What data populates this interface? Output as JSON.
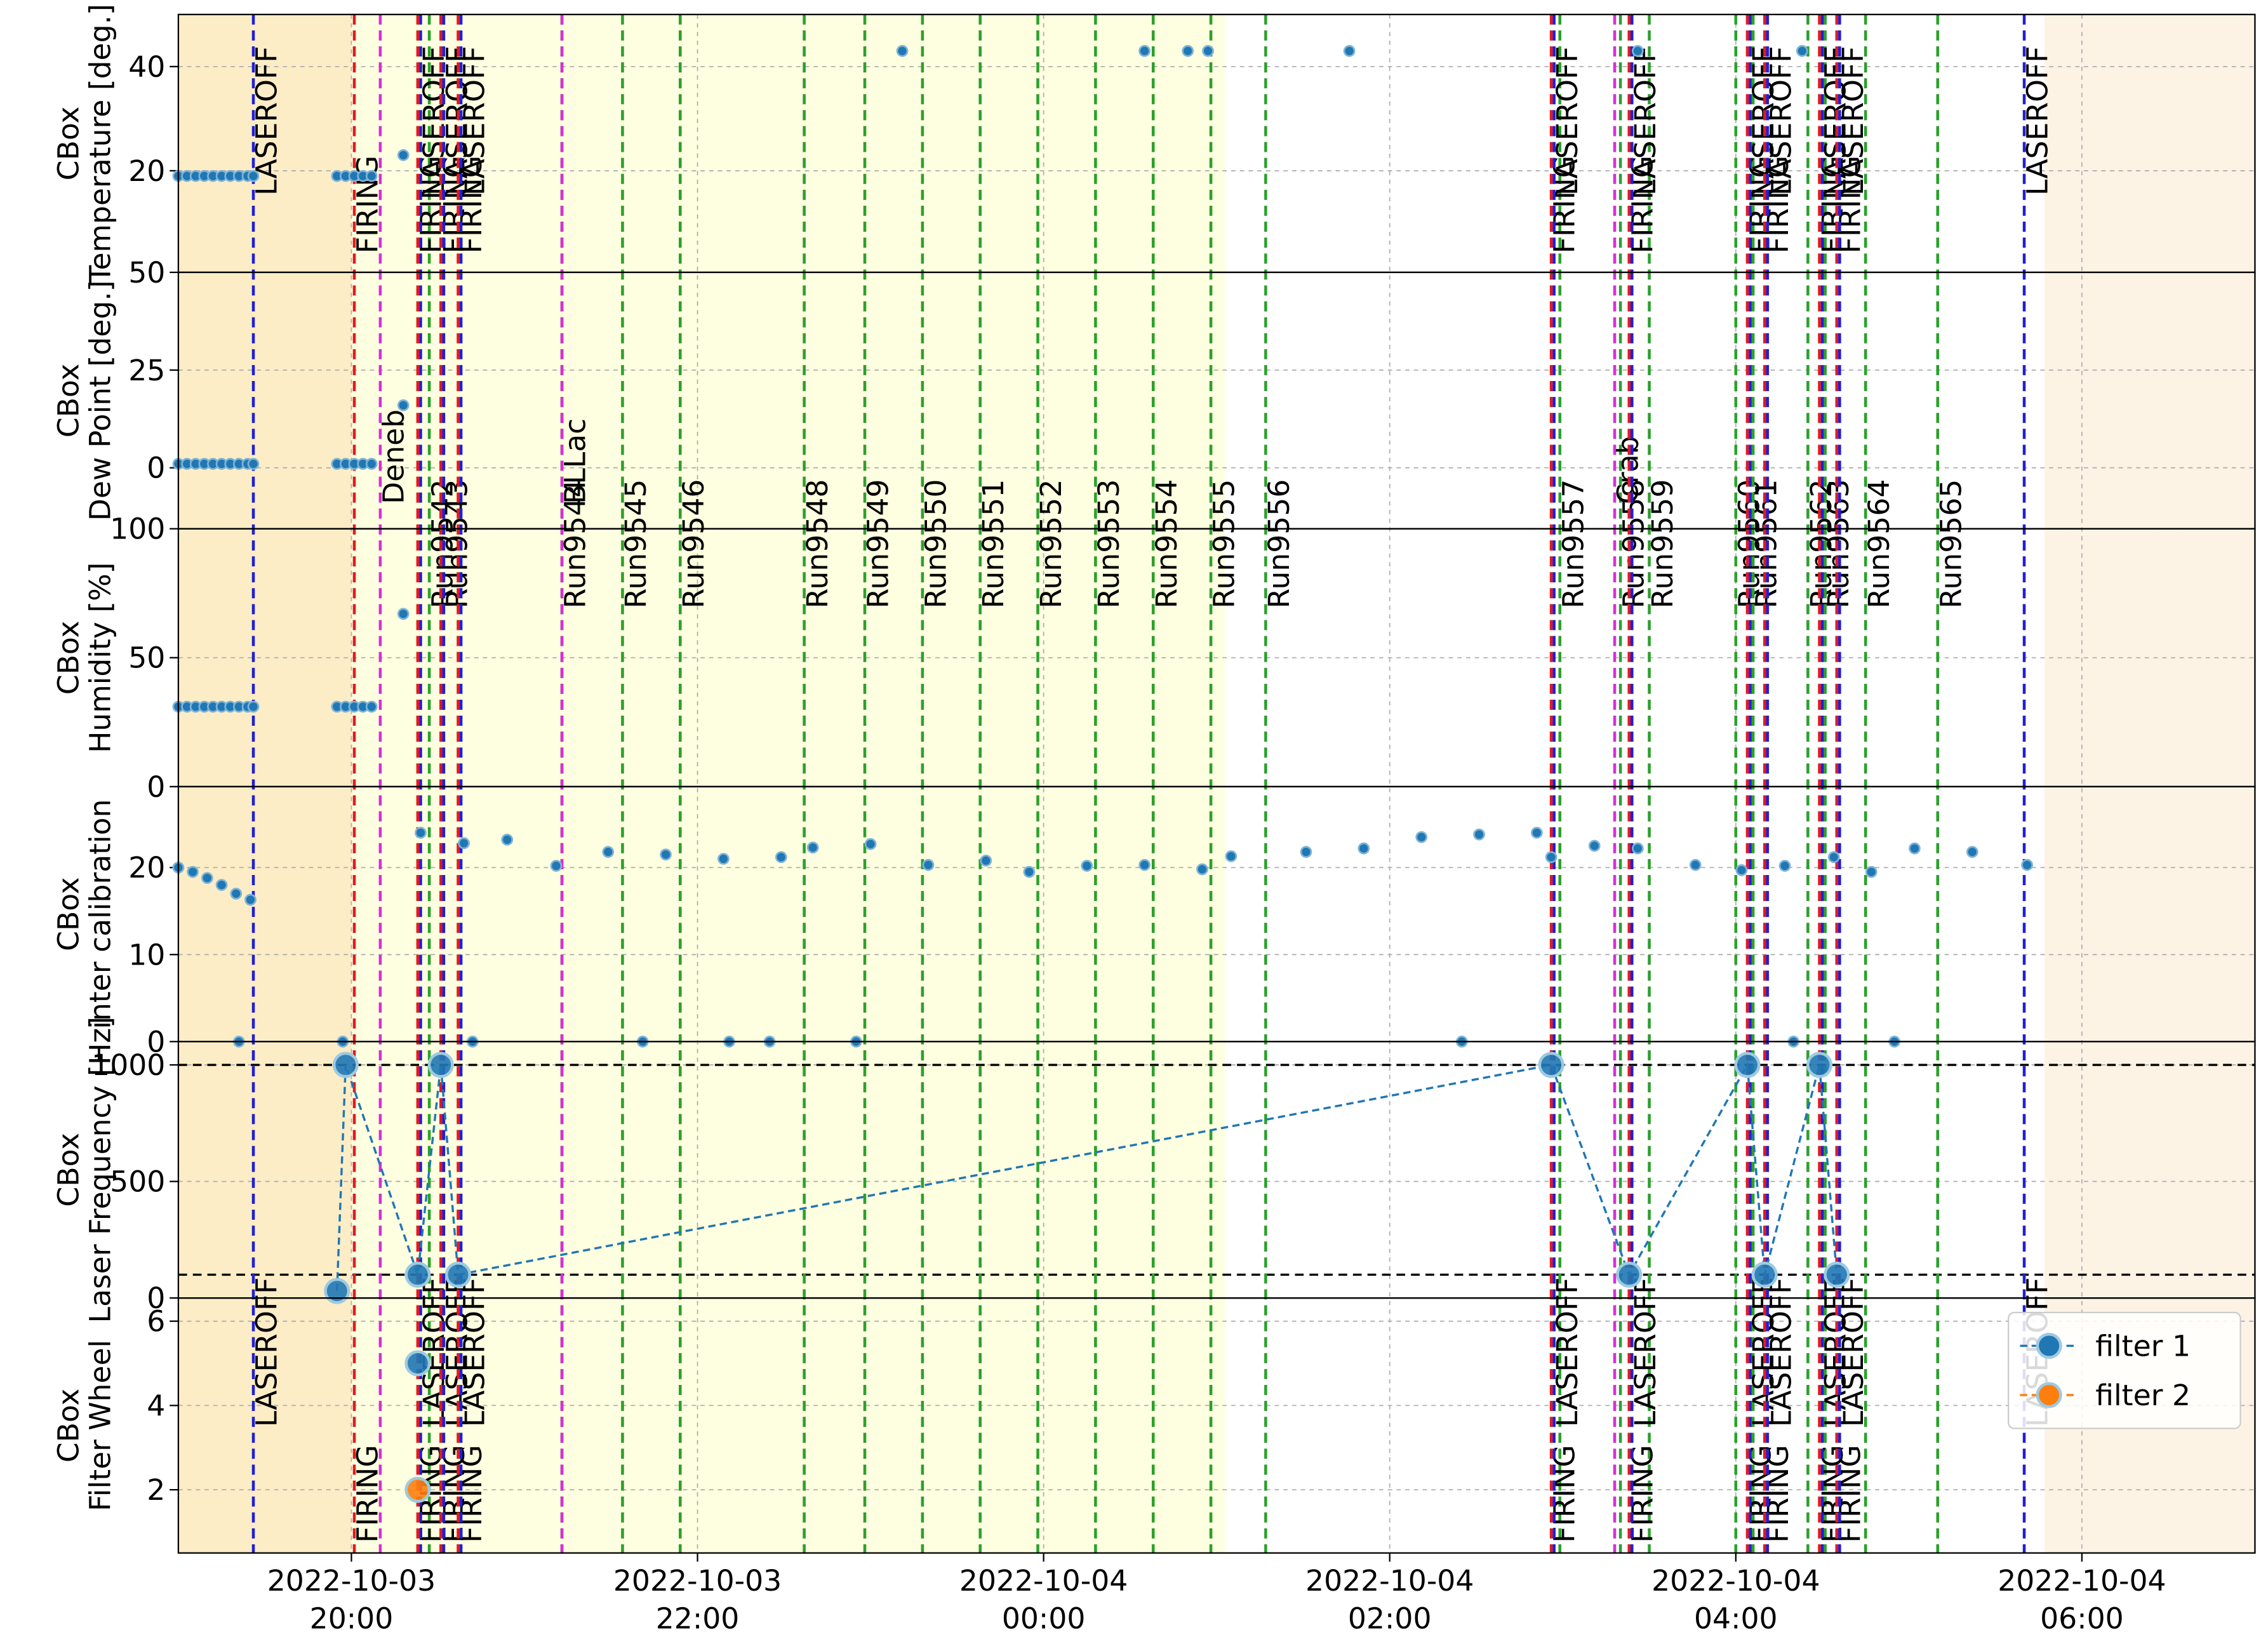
{
  "time_axis": {
    "xlim": [
      "2022-10-03 19:00",
      "2022-10-04 07:00"
    ],
    "xticks": [
      {
        "value": "2022-10-03 20:00",
        "label": [
          "2022-10-03",
          "20:00"
        ]
      },
      {
        "value": "2022-10-03 22:00",
        "label": [
          "2022-10-03",
          "22:00"
        ]
      },
      {
        "value": "2022-10-04 00:00",
        "label": [
          "2022-10-04",
          "00:00"
        ]
      },
      {
        "value": "2022-10-04 02:00",
        "label": [
          "2022-10-04",
          "02:00"
        ]
      },
      {
        "value": "2022-10-04 04:00",
        "label": [
          "2022-10-04",
          "04:00"
        ]
      },
      {
        "value": "2022-10-04 06:00",
        "label": [
          "2022-10-04",
          "06:00"
        ]
      }
    ],
    "grid": true
  },
  "background_bands": [
    {
      "start": "2022-10-03 19:00",
      "end": "2022-10-03 20:00",
      "color": "#fcedc6"
    },
    {
      "start": "2022-10-03 20:00",
      "end": "2022-10-04 01:03",
      "color": "#fefee0"
    },
    {
      "start": "2022-10-04 05:47",
      "end": "2022-10-04 07:00",
      "color": "#fdf3e5"
    }
  ],
  "events": {
    "laser": [
      {
        "time": "2022-10-03 19:26",
        "label": "LASEROFF",
        "color": "#1f1fd6"
      },
      {
        "time": "2022-10-03 20:01",
        "label": "FIRING",
        "color": "#e31a1c"
      },
      {
        "time": "2022-10-03 20:23",
        "label": "FIRING",
        "color": "#e31a1c"
      },
      {
        "time": "2022-10-03 20:24",
        "label": "LASEROFF",
        "color": "#1f1fd6"
      },
      {
        "time": "2022-10-03 20:31",
        "label": "FIRING",
        "color": "#e31a1c"
      },
      {
        "time": "2022-10-03 20:32",
        "label": "LASEROFF",
        "color": "#1f1fd6"
      },
      {
        "time": "2022-10-03 20:37",
        "label": "FIRING",
        "color": "#e31a1c"
      },
      {
        "time": "2022-10-03 20:38",
        "label": "LASEROFF",
        "color": "#1f1fd6"
      },
      {
        "time": "2022-10-04 02:56",
        "label": "FIRING",
        "color": "#e31a1c"
      },
      {
        "time": "2022-10-04 02:57",
        "label": "LASEROFF",
        "color": "#1f1fd6"
      },
      {
        "time": "2022-10-04 03:23",
        "label": "FIRING",
        "color": "#e31a1c"
      },
      {
        "time": "2022-10-04 03:24",
        "label": "LASEROFF",
        "color": "#1f1fd6"
      },
      {
        "time": "2022-10-04 04:04",
        "label": "FIRING",
        "color": "#e31a1c"
      },
      {
        "time": "2022-10-04 04:05",
        "label": "LASEROFF",
        "color": "#1f1fd6"
      },
      {
        "time": "2022-10-04 04:10",
        "label": "FIRING",
        "color": "#e31a1c"
      },
      {
        "time": "2022-10-04 04:11",
        "label": "LASEROFF",
        "color": "#1f1fd6"
      },
      {
        "time": "2022-10-04 04:29",
        "label": "FIRING",
        "color": "#e31a1c"
      },
      {
        "time": "2022-10-04 04:30",
        "label": "LASEROFF",
        "color": "#1f1fd6"
      },
      {
        "time": "2022-10-04 04:35",
        "label": "FIRING",
        "color": "#e31a1c"
      },
      {
        "time": "2022-10-04 04:36",
        "label": "LASEROFF",
        "color": "#1f1fd6"
      },
      {
        "time": "2022-10-04 05:40",
        "label": "LASEROFF",
        "color": "#1f1fd6"
      }
    ],
    "sources": {
      "line_color": "#d62fd6",
      "label_color": "#e31a1c",
      "items": [
        {
          "time": "2022-10-03 20:10",
          "label": "Deneb"
        },
        {
          "time": "2022-10-03 21:13",
          "label": "BLLac"
        },
        {
          "time": "2022-10-04 03:18",
          "label": "Crab"
        }
      ]
    },
    "runs": {
      "line_color": "#2ca02c",
      "label_color": "#e31a1c",
      "items": [
        {
          "time": "2022-10-03 20:27",
          "label": "Run9542"
        },
        {
          "time": "2022-10-03 20:32",
          "label": "Run9543"
        },
        {
          "time": "2022-10-03 21:13",
          "label": "Run9544"
        },
        {
          "time": "2022-10-03 21:34",
          "label": "Run9545"
        },
        {
          "time": "2022-10-03 21:54",
          "label": "Run9546"
        },
        {
          "time": "2022-10-03 22:37",
          "label": "Run9548"
        },
        {
          "time": "2022-10-03 22:58",
          "label": "Run9549"
        },
        {
          "time": "2022-10-03 23:18",
          "label": "Run9550"
        },
        {
          "time": "2022-10-03 23:38",
          "label": "Run9551"
        },
        {
          "time": "2022-10-03 23:58",
          "label": "Run9552"
        },
        {
          "time": "2022-10-04 00:18",
          "label": "Run9553"
        },
        {
          "time": "2022-10-04 00:38",
          "label": "Run9554"
        },
        {
          "time": "2022-10-04 00:58",
          "label": "Run9555"
        },
        {
          "time": "2022-10-04 01:17",
          "label": "Run9556"
        },
        {
          "time": "2022-10-04 02:59",
          "label": "Run9557"
        },
        {
          "time": "2022-10-04 03:20",
          "label": "Run9558"
        },
        {
          "time": "2022-10-04 03:30",
          "label": "Run9559"
        },
        {
          "time": "2022-10-04 04:00",
          "label": "Run9560"
        },
        {
          "time": "2022-10-04 04:06",
          "label": "Run9561"
        },
        {
          "time": "2022-10-04 04:25",
          "label": "Run9562"
        },
        {
          "time": "2022-10-04 04:31",
          "label": "Run9563"
        },
        {
          "time": "2022-10-04 04:45",
          "label": "Run9564"
        },
        {
          "time": "2022-10-04 05:10",
          "label": "Run9565"
        }
      ]
    }
  },
  "chart_data": [
    {
      "type": "scatter",
      "ylabel": [
        "CBox",
        "Temperature [deg.]"
      ],
      "ylim": [
        0.5,
        50
      ],
      "yticks": [
        20,
        40
      ],
      "grid": true,
      "series": [
        {
          "color": "#1f77b4",
          "x": [
            "2022-10-03 19:00",
            "2022-10-03 19:03",
            "2022-10-03 19:06",
            "2022-10-03 19:09",
            "2022-10-03 19:12",
            "2022-10-03 19:15",
            "2022-10-03 19:18",
            "2022-10-03 19:21",
            "2022-10-03 19:24",
            "2022-10-03 19:26",
            "2022-10-03 19:55",
            "2022-10-03 19:58",
            "2022-10-03 20:01",
            "2022-10-03 20:04",
            "2022-10-03 20:07",
            "2022-10-03 20:18",
            "2022-10-03 23:11",
            "2022-10-04 00:35",
            "2022-10-04 00:50",
            "2022-10-04 00:57",
            "2022-10-04 01:46",
            "2022-10-04 03:26",
            "2022-10-04 04:23"
          ],
          "values": [
            19,
            19,
            19,
            19,
            19,
            19,
            19,
            19,
            19,
            19,
            19,
            19,
            19,
            19,
            19,
            23,
            43,
            43,
            43,
            43,
            43,
            43,
            43
          ]
        }
      ]
    },
    {
      "type": "scatter",
      "ylabel": [
        "CBox",
        "Dew Point [deg.]"
      ],
      "ylim": [
        -15.6,
        50
      ],
      "yticks": [
        0,
        25,
        50
      ],
      "grid": true,
      "series": [
        {
          "color": "#1f77b4",
          "x": [
            "2022-10-03 19:00",
            "2022-10-03 19:03",
            "2022-10-03 19:06",
            "2022-10-03 19:09",
            "2022-10-03 19:12",
            "2022-10-03 19:15",
            "2022-10-03 19:18",
            "2022-10-03 19:21",
            "2022-10-03 19:24",
            "2022-10-03 19:26",
            "2022-10-03 19:55",
            "2022-10-03 19:58",
            "2022-10-03 20:01",
            "2022-10-03 20:04",
            "2022-10-03 20:07",
            "2022-10-03 20:18"
          ],
          "values": [
            1,
            1,
            1,
            1,
            1,
            1,
            1,
            1,
            1,
            1,
            1,
            1,
            1,
            1,
            1,
            16
          ]
        }
      ]
    },
    {
      "type": "scatter",
      "ylabel": [
        "CBox",
        "Humidity [%]"
      ],
      "ylim": [
        0,
        100
      ],
      "yticks": [
        0,
        50,
        100
      ],
      "grid": true,
      "series": [
        {
          "color": "#1f77b4",
          "x": [
            "2022-10-03 19:00",
            "2022-10-03 19:03",
            "2022-10-03 19:06",
            "2022-10-03 19:09",
            "2022-10-03 19:12",
            "2022-10-03 19:15",
            "2022-10-03 19:18",
            "2022-10-03 19:21",
            "2022-10-03 19:24",
            "2022-10-03 19:26",
            "2022-10-03 19:55",
            "2022-10-03 19:58",
            "2022-10-03 20:01",
            "2022-10-03 20:04",
            "2022-10-03 20:07",
            "2022-10-03 20:18"
          ],
          "values": [
            31,
            31,
            31,
            31,
            31,
            31,
            31,
            31,
            31,
            31,
            31,
            31,
            31,
            31,
            31,
            67
          ]
        }
      ]
    },
    {
      "type": "scatter",
      "ylabel": [
        "CBox",
        "inter calibration"
      ],
      "ylim": [
        0,
        29.3
      ],
      "yticks": [
        0,
        10,
        20
      ],
      "grid": true,
      "series": [
        {
          "color": "#1f77b4",
          "x": [
            "2022-10-03 19:00",
            "2022-10-03 19:05",
            "2022-10-03 19:10",
            "2022-10-03 19:15",
            "2022-10-03 19:20",
            "2022-10-03 19:21",
            "2022-10-03 19:25",
            "2022-10-03 19:57",
            "2022-10-03 20:24",
            "2022-10-03 20:39",
            "2022-10-03 20:42",
            "2022-10-03 20:54",
            "2022-10-03 21:11",
            "2022-10-03 21:29",
            "2022-10-03 21:41",
            "2022-10-03 21:49",
            "2022-10-03 22:09",
            "2022-10-03 22:11",
            "2022-10-03 22:25",
            "2022-10-03 22:29",
            "2022-10-03 22:40",
            "2022-10-03 22:55",
            "2022-10-03 23:00",
            "2022-10-03 23:20",
            "2022-10-03 23:40",
            "2022-10-03 23:55",
            "2022-10-04 00:15",
            "2022-10-04 00:35",
            "2022-10-04 00:55",
            "2022-10-04 01:05",
            "2022-10-04 01:31",
            "2022-10-04 01:51",
            "2022-10-04 02:11",
            "2022-10-04 02:25",
            "2022-10-04 02:31",
            "2022-10-04 02:51",
            "2022-10-04 02:56",
            "2022-10-04 03:11",
            "2022-10-04 03:26",
            "2022-10-04 03:46",
            "2022-10-04 04:02",
            "2022-10-04 04:17",
            "2022-10-04 04:20",
            "2022-10-04 04:34",
            "2022-10-04 04:47",
            "2022-10-04 04:55",
            "2022-10-04 05:02",
            "2022-10-04 05:22",
            "2022-10-04 05:41"
          ],
          "values": [
            20,
            19.5,
            18.8,
            18,
            17,
            0,
            16.3,
            0,
            24,
            22.8,
            0,
            23.2,
            20.2,
            21.8,
            0,
            21.5,
            21,
            0,
            0,
            21.2,
            22.3,
            0,
            22.7,
            20.3,
            20.8,
            19.5,
            20.2,
            20.3,
            19.8,
            21.3,
            21.8,
            22.2,
            23.5,
            0,
            23.8,
            24,
            21.2,
            22.5,
            22.2,
            20.3,
            19.7,
            20.2,
            0,
            21.2,
            19.5,
            0,
            22.2,
            21.8,
            20.3
          ]
        }
      ]
    },
    {
      "type": "line",
      "ylabel": [
        "CBox",
        "Laser Frequency [Hz]"
      ],
      "ylim": [
        0,
        1100
      ],
      "yticks": [
        0,
        500,
        1000
      ],
      "grid": true,
      "hlines": [
        1000,
        100
      ],
      "series": [
        {
          "color": "#1f77b4",
          "x": [
            "2022-10-03 19:55",
            "2022-10-03 19:58",
            "2022-10-03 20:23",
            "2022-10-03 20:31",
            "2022-10-03 20:37",
            "2022-10-04 02:56",
            "2022-10-04 03:23",
            "2022-10-04 04:04",
            "2022-10-04 04:10",
            "2022-10-04 04:29",
            "2022-10-04 04:35"
          ],
          "values": [
            30,
            1000,
            100,
            1000,
            100,
            1000,
            100,
            1000,
            100,
            1000,
            100
          ]
        }
      ]
    },
    {
      "type": "line",
      "ylabel": [
        "CBox",
        "Filter Wheel"
      ],
      "ylim": [
        0.5,
        6.55
      ],
      "yticks": [
        2,
        4,
        6
      ],
      "grid": true,
      "legend": "upper right",
      "series": [
        {
          "name": "filter 1",
          "color": "#1f77b4",
          "x": [
            "2022-10-03 20:23"
          ],
          "values": [
            5
          ]
        },
        {
          "name": "filter 2",
          "color": "#ff7f0e",
          "x": [
            "2022-10-03 20:23"
          ],
          "values": [
            2
          ]
        }
      ]
    }
  ]
}
